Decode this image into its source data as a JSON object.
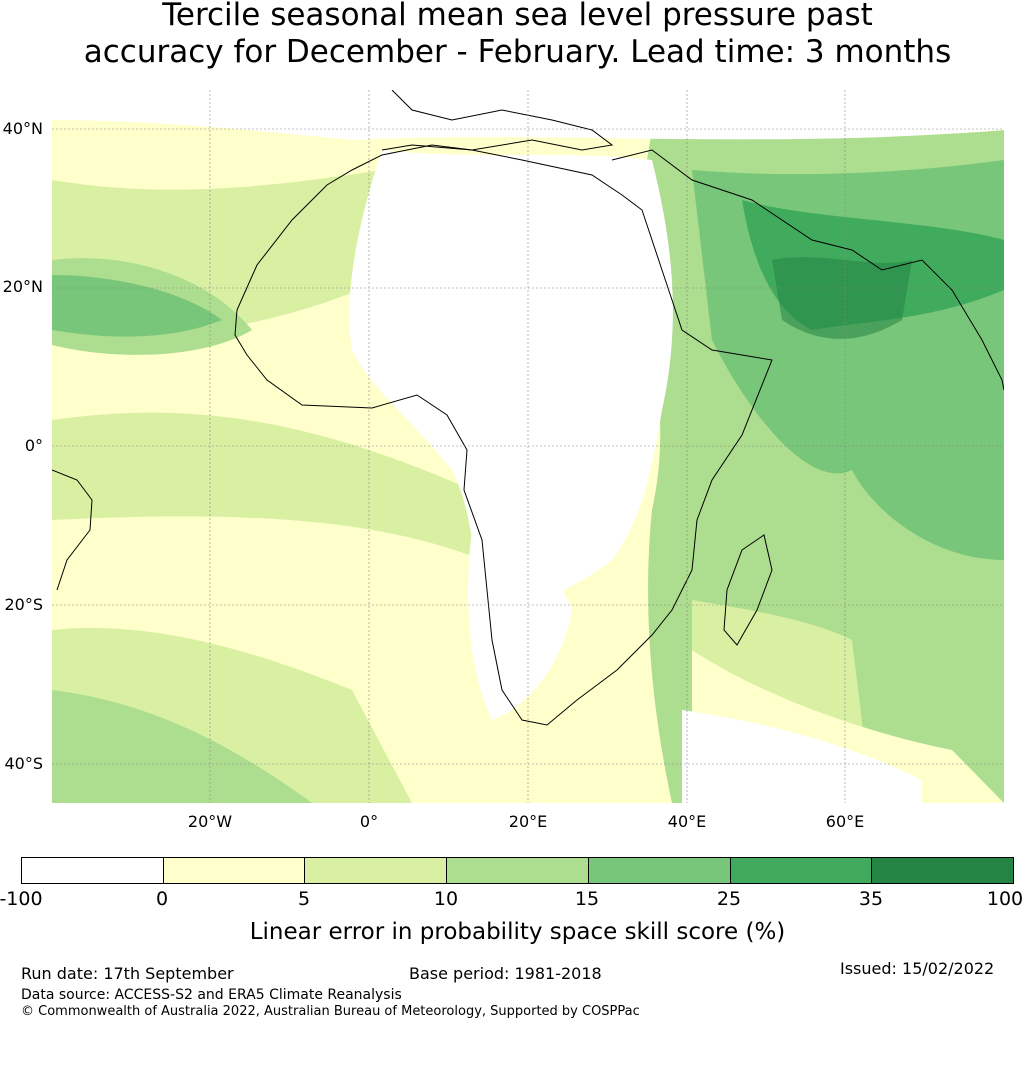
{
  "title": {
    "line1": "Tercile seasonal mean sea level pressure past",
    "line2": "accuracy for December - February. Lead time: 3 months"
  },
  "axes": {
    "lat_labels": [
      "40°N",
      "20°N",
      "0°",
      "20°S",
      "40°S"
    ],
    "lon_labels": [
      "20°W",
      "0°",
      "20°E",
      "40°E",
      "60°E"
    ]
  },
  "map": {
    "extent": {
      "lon_min": -40,
      "lon_max": 80,
      "lat_min": -45,
      "lat_max": 45
    },
    "regions": [
      {
        "name": "background-ocean",
        "class": "0-5"
      },
      {
        "name": "north-atlantic-band",
        "class": "10-15"
      },
      {
        "name": "tropical-atlantic",
        "class": "5-10"
      },
      {
        "name": "south-atlantic",
        "class": "5-10"
      },
      {
        "name": "sahara-and-central-africa",
        "class": "no-skill"
      },
      {
        "name": "southern-africa",
        "class": "no-skill"
      },
      {
        "name": "indian-ocean",
        "class": "15-25"
      },
      {
        "name": "arabian-peninsula",
        "class": "25-35"
      },
      {
        "name": "south-asia",
        "class": "25-35"
      },
      {
        "name": "madagascar-sea",
        "class": "10-15"
      },
      {
        "name": "southern-ocean-south-west",
        "class": "10-15"
      }
    ]
  },
  "colorbar": {
    "colors": [
      "#ffffff",
      "#ffffcc",
      "#d9f0a3",
      "#addd8e",
      "#78c679",
      "#41ab5d",
      "#238443"
    ],
    "ticks": [
      "-100",
      "0",
      "5",
      "10",
      "15",
      "25",
      "35",
      "100"
    ],
    "label": "Linear error in probability space skill score (%)"
  },
  "footer": {
    "run_date": "Run date: 17th September",
    "base_period": "Base period: 1981-2018",
    "issued": "Issued: 15/02/2022",
    "data_source": "Data source: ACCESS-S2 and ERA5 Climate Reanalysis",
    "copyright": "© Commonwealth of Australia 2022, Australian Bureau of Meteorology, Supported by COSPPac"
  }
}
